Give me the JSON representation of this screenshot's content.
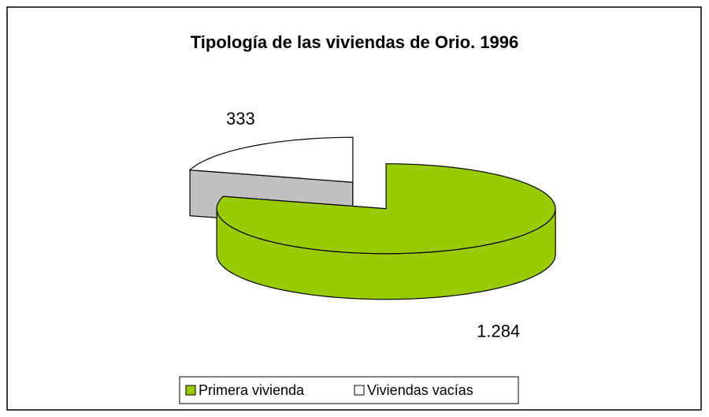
{
  "chart_data": {
    "type": "pie",
    "title": "Tipología de las viviendas de Orio. 1996",
    "categories": [
      "Primera vivienda",
      "Viviendas vacías"
    ],
    "values": [
      1284,
      333
    ],
    "value_labels": [
      "1.284",
      "333"
    ],
    "colors": [
      "#99cc00",
      "#ffffff"
    ],
    "legend": "bottom"
  }
}
